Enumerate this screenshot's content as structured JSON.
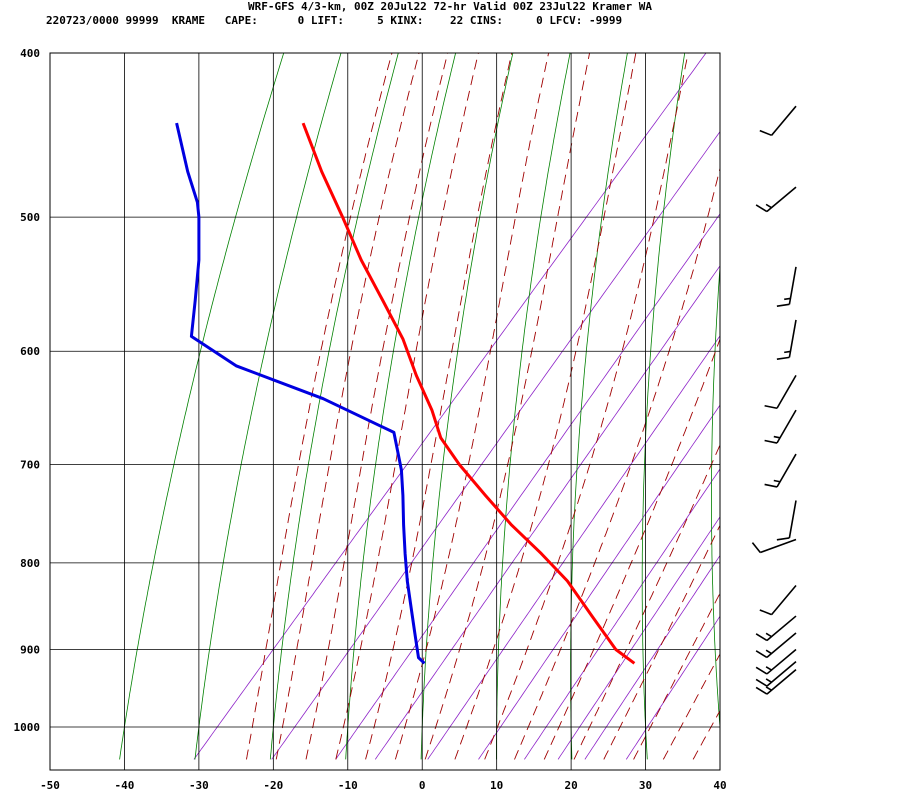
{
  "header": {
    "title": "WRF-GFS 4/3-km, 00Z 20Jul22 72-hr Valid 00Z 23Jul22 Kramer WA",
    "station_line": "220723/0000 99999  KRAME   CAPE:      0 LIFT:     5 KINX:    22 CINS:     0 LFCV: -9999"
  },
  "colors": {
    "temperature": "#ff0000",
    "dewpoint": "#0000e0",
    "isotherm": "#000000",
    "dry_adiabat": "#008000",
    "moist_adiabat": "#a00000",
    "mixing_ratio": "#8e24c8",
    "wind_barb": "#000000"
  },
  "chart_data": {
    "type": "line",
    "chart_kind": "skew-T log-P sounding",
    "title": "WRF-GFS 4/3-km, 00Z 20Jul22 72-hr Valid 00Z 23Jul22 Kramer WA",
    "xlabel": "",
    "ylabel": "",
    "x_ticks": [
      -50,
      -40,
      -30,
      -20,
      -10,
      0,
      10,
      20,
      30,
      40
    ],
    "x_tick_labels": [
      "-50",
      "-40",
      "-30",
      "-20",
      "-10",
      "0",
      "10",
      "20",
      "30",
      "40"
    ],
    "y_ticks": [
      400,
      500,
      600,
      700,
      800,
      900,
      1000
    ],
    "y_tick_labels": [
      "400",
      "500",
      "600",
      "700",
      "800",
      "900",
      "1000"
    ],
    "xlim": [
      -50,
      40
    ],
    "ylim": [
      1040,
      400
    ],
    "y_scale": "log",
    "grid": true,
    "series": [
      {
        "key": "temperature",
        "points": [
          [
            917,
            28.5
          ],
          [
            900,
            26.0
          ],
          [
            860,
            22.8
          ],
          [
            820,
            19.5
          ],
          [
            790,
            16.0
          ],
          [
            760,
            12.0
          ],
          [
            730,
            8.5
          ],
          [
            700,
            5.0
          ],
          [
            675,
            2.5
          ],
          [
            650,
            1.3
          ],
          [
            620,
            -0.8
          ],
          [
            590,
            -2.6
          ],
          [
            560,
            -5.3
          ],
          [
            530,
            -8.2
          ],
          [
            500,
            -10.7
          ],
          [
            470,
            -13.5
          ],
          [
            440,
            -16.0
          ]
        ]
      },
      {
        "key": "dewpoint",
        "points": [
          [
            917,
            0.3
          ],
          [
            910,
            -0.5
          ],
          [
            880,
            -1.0
          ],
          [
            850,
            -1.5
          ],
          [
            820,
            -2.0
          ],
          [
            790,
            -2.3
          ],
          [
            760,
            -2.5
          ],
          [
            730,
            -2.6
          ],
          [
            705,
            -2.8
          ],
          [
            670,
            -3.8
          ],
          [
            640,
            -13.3
          ],
          [
            612,
            -25.0
          ],
          [
            588,
            -31.0
          ],
          [
            560,
            -30.5
          ],
          [
            530,
            -30.0
          ],
          [
            500,
            -30.0
          ],
          [
            490,
            -30.2
          ],
          [
            470,
            -31.5
          ],
          [
            440,
            -33.0
          ]
        ]
      }
    ],
    "wind_barbs": [
      {
        "p": 925,
        "dir": 230,
        "kt": 15
      },
      {
        "p": 915,
        "dir": 230,
        "kt": 15
      },
      {
        "p": 900,
        "dir": 230,
        "kt": 15
      },
      {
        "p": 880,
        "dir": 230,
        "kt": 15
      },
      {
        "p": 860,
        "dir": 230,
        "kt": 15
      },
      {
        "p": 825,
        "dir": 220,
        "kt": 10
      },
      {
        "p": 775,
        "dir": 250,
        "kt": 10
      },
      {
        "p": 735,
        "dir": 190,
        "kt": 10
      },
      {
        "p": 690,
        "dir": 210,
        "kt": 15
      },
      {
        "p": 650,
        "dir": 210,
        "kt": 15
      },
      {
        "p": 620,
        "dir": 210,
        "kt": 10
      },
      {
        "p": 575,
        "dir": 190,
        "kt": 15
      },
      {
        "p": 535,
        "dir": 190,
        "kt": 15
      },
      {
        "p": 480,
        "dir": 230,
        "kt": 15
      },
      {
        "p": 430,
        "dir": 220,
        "kt": 10
      }
    ]
  }
}
